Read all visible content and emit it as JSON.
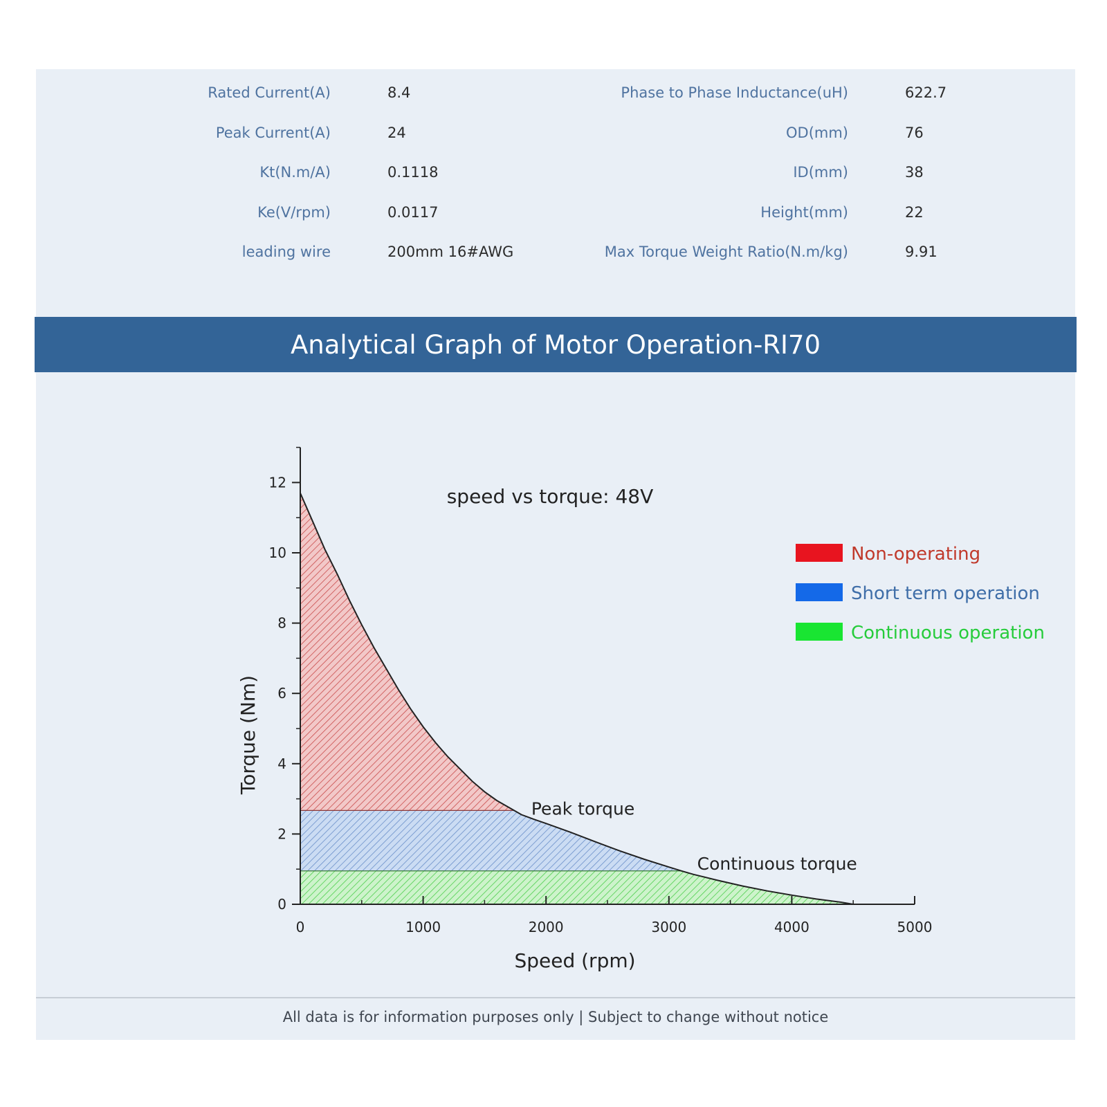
{
  "specs": {
    "left": [
      {
        "label": "Rated Current(A)",
        "value": "8.4"
      },
      {
        "label": "Peak Current(A)",
        "value": "24"
      },
      {
        "label": "Kt(N.m/A)",
        "value": "0.1118"
      },
      {
        "label": "Ke(V/rpm)",
        "value": "0.0117"
      },
      {
        "label": "leading wire",
        "value": "200mm 16#AWG"
      }
    ],
    "right": [
      {
        "label": "Phase to Phase Inductance(uH)",
        "value": "622.7"
      },
      {
        "label": "OD(mm)",
        "value": "76"
      },
      {
        "label": "ID(mm)",
        "value": "38"
      },
      {
        "label": "Height(mm)",
        "value": "22"
      },
      {
        "label": "Max Torque Weight Ratio(N.m/kg)",
        "value": "9.91"
      }
    ]
  },
  "banner": {
    "title": "Analytical Graph of Motor Operation-RI70"
  },
  "chart_data": {
    "type": "area",
    "title": "speed vs torque: 48V",
    "xlabel": "Speed (rpm)",
    "ylabel": "Torque (Nm)",
    "xlim": [
      0,
      5000
    ],
    "ylim": [
      0,
      13
    ],
    "xticks": [
      0,
      1000,
      2000,
      3000,
      4000,
      5000
    ],
    "yticks": [
      0,
      2,
      4,
      6,
      8,
      10,
      12
    ],
    "grid": false,
    "legend_position": "right",
    "curve": {
      "x": [
        0,
        100,
        200,
        300,
        400,
        500,
        600,
        700,
        800,
        900,
        1000,
        1100,
        1200,
        1300,
        1400,
        1500,
        1600,
        1700,
        1800,
        1900,
        2000,
        2200,
        2400,
        2600,
        2800,
        3000,
        3100,
        3200,
        3400,
        3600,
        3800,
        4000,
        4200,
        4400,
        4500
      ],
      "y": [
        11.7,
        10.9,
        10.1,
        9.4,
        8.65,
        7.95,
        7.3,
        6.7,
        6.1,
        5.55,
        5.05,
        4.6,
        4.2,
        3.85,
        3.5,
        3.2,
        2.95,
        2.75,
        2.55,
        2.42,
        2.3,
        2.05,
        1.78,
        1.52,
        1.28,
        1.06,
        0.95,
        0.85,
        0.68,
        0.52,
        0.38,
        0.26,
        0.15,
        0.06,
        0.0
      ]
    },
    "peak_torque": {
      "value": 2.67,
      "speed": 1780
    },
    "continuous_torque": {
      "value": 0.95,
      "speed": 3100
    },
    "annotations": [
      {
        "text": "Peak torque",
        "x": 1880,
        "y": 2.75
      },
      {
        "text": "Continuous torque",
        "x": 3230,
        "y": 1.18
      }
    ],
    "series": [
      {
        "name": "Non-operating",
        "color": "#e8141f"
      },
      {
        "name": "Short term operation",
        "color": "#1469e8"
      },
      {
        "name": "Continuous operation",
        "color": "#19e532"
      }
    ],
    "legend_text_colors": [
      "#c0392b",
      "#3f6ea8",
      "#26cc3b"
    ]
  },
  "footer": {
    "text": "All data is for information purposes only | Subject to change without notice"
  }
}
